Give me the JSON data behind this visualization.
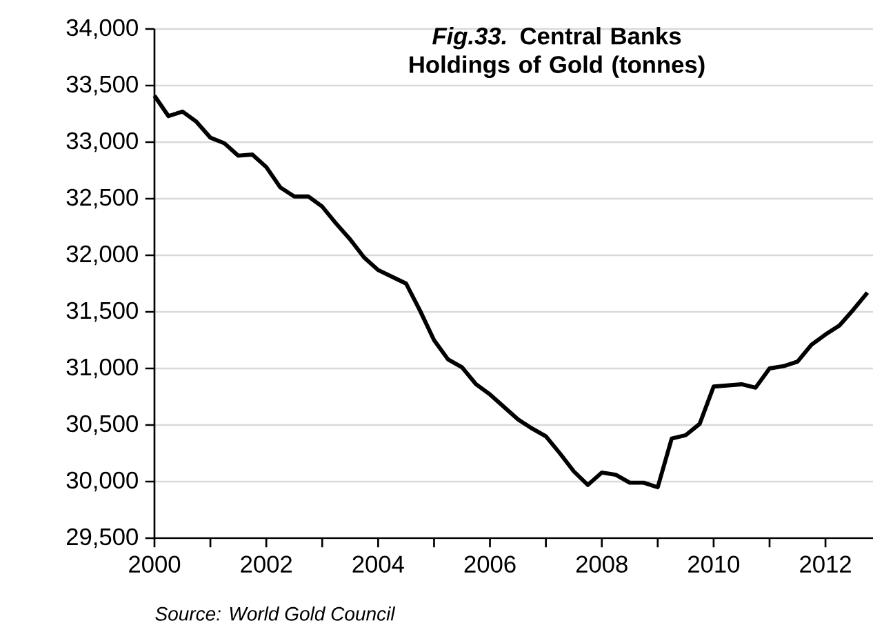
{
  "chart_data": {
    "type": "line",
    "title": "*Fig.33.* Central Banks Holdings of Gold (tonnes)",
    "annotations": [
      "Source: World Gold Council"
    ],
    "x": [
      2000,
      2000.25,
      2000.5,
      2000.75,
      2001,
      2001.25,
      2001.5,
      2001.75,
      2002,
      2002.25,
      2002.5,
      2002.75,
      2003,
      2003.25,
      2003.5,
      2003.75,
      2004,
      2004.25,
      2004.5,
      2004.75,
      2005,
      2005.25,
      2005.5,
      2005.75,
      2006,
      2006.25,
      2006.5,
      2006.75,
      2007,
      2007.25,
      2007.5,
      2007.75,
      2008,
      2008.25,
      2008.5,
      2008.75,
      2009,
      2009.25,
      2009.5,
      2009.75,
      2010,
      2010.25,
      2010.5,
      2010.75,
      2011,
      2011.25,
      2011.5,
      2011.75,
      2012,
      2012.25,
      2012.5,
      2012.75
    ],
    "series": [
      {
        "color": "#000000",
        "values": [
          33410,
          33230,
          33270,
          33180,
          33040,
          32990,
          32880,
          32890,
          32780,
          32600,
          32520,
          32520,
          32430,
          32280,
          32140,
          31980,
          31870,
          31810,
          31750,
          31510,
          31250,
          31080,
          31010,
          30860,
          30770,
          30660,
          30550,
          30470,
          30400,
          30250,
          30090,
          29970,
          30080,
          30060,
          29990,
          29990,
          29950,
          30380,
          30410,
          30510,
          30840,
          30850,
          30860,
          30830,
          31000,
          31020,
          31060,
          31210,
          31300,
          31380,
          31520,
          31670
        ]
      }
    ],
    "xlim": [
      2000,
      2012.85
    ],
    "ylim": [
      29500,
      34000
    ],
    "xticks": [
      2000,
      {
        "value": 2001,
        "label": null
      },
      2002,
      {
        "value": 2003,
        "label": null
      },
      2004,
      {
        "value": 2005,
        "label": null
      },
      2006,
      {
        "value": 2007,
        "label": null
      },
      2008,
      {
        "value": 2009,
        "label": null
      },
      2010,
      {
        "value": 2011,
        "label": null
      },
      2012
    ],
    "yticks": [
      {
        "value": 29500,
        "label": "29,500"
      },
      {
        "value": 30000,
        "label": "30,000"
      },
      {
        "value": 30500,
        "label": "30,500"
      },
      {
        "value": 31000,
        "label": "31,000"
      },
      {
        "value": 31500,
        "label": "31,500"
      },
      {
        "value": 32000,
        "label": "32,000"
      },
      {
        "value": 32500,
        "label": "32,500"
      },
      {
        "value": 33000,
        "label": "33,000"
      },
      {
        "value": 33500,
        "label": "33,500"
      },
      {
        "value": 34000,
        "label": "34,000"
      }
    ],
    "grid": "y"
  }
}
